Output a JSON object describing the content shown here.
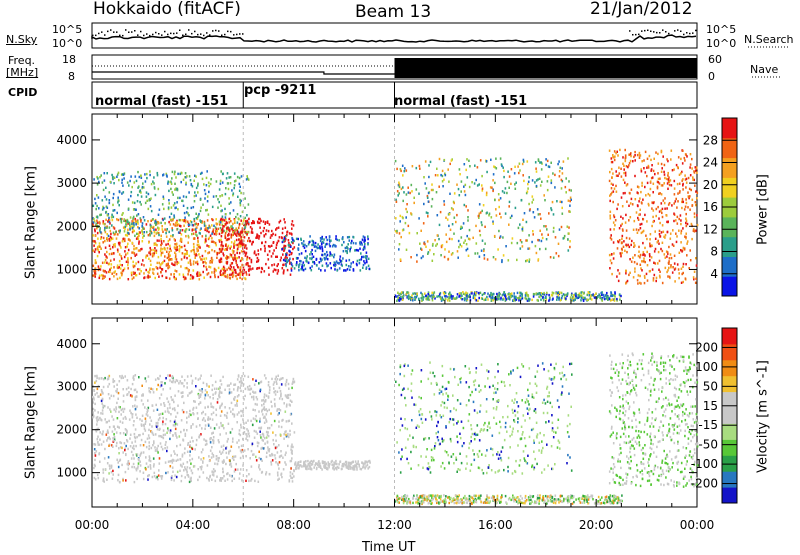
{
  "header": {
    "station": "Hokkaido (fitACF)",
    "beam": "Beam 13",
    "date": "21/Jan/2012"
  },
  "left_labels": {
    "nsky": "N.Sky",
    "freq_line1": "Freq.",
    "freq_line2": "[MHz]",
    "cpid": "CPID"
  },
  "right_labels": {
    "nsearch": "N.Search",
    "nave": "Nave"
  },
  "status_axes": {
    "n_left_top": "10^5",
    "n_left_bottom": "10^0",
    "n_right_top": "10^5",
    "n_right_bottom": "10^0",
    "freq_top": "18",
    "freq_bottom": "8",
    "nave_top": "60",
    "nave_bottom": "0"
  },
  "cpid_modes": [
    {
      "label": "normal (fast) -151",
      "start_h": 0,
      "end_h": 6
    },
    {
      "label": "pcp -9211",
      "start_h": 6,
      "end_h": 12
    },
    {
      "label": "normal (fast) -151",
      "start_h": 12,
      "end_h": 24
    }
  ],
  "chart_data": [
    {
      "type": "heatmap",
      "title": "Power",
      "xlabel": "Time UT",
      "ylabel": "Slant Range [km]",
      "xlim_hours": [
        0,
        24
      ],
      "ylim": [
        200,
        4600
      ],
      "x_ticks": [
        "00:00",
        "04:00",
        "08:00",
        "12:00",
        "16:00",
        "20:00",
        "00:00"
      ],
      "y_ticks": [
        "1000",
        "2000",
        "3000",
        "4000"
      ],
      "colorbar": {
        "label": "Power [dB]",
        "range": [
          0,
          32
        ],
        "ticks": [
          "4",
          "8",
          "12",
          "16",
          "20",
          "24",
          "28"
        ],
        "colors": [
          "#0a14e6",
          "#1e6ec8",
          "#2a9e8a",
          "#5ab45a",
          "#9ccc3c",
          "#f0d020",
          "#f4a020",
          "#f06414",
          "#e61414"
        ]
      }
    },
    {
      "type": "heatmap",
      "title": "Velocity",
      "xlabel": "Time UT",
      "ylabel": "Slant Range [km]",
      "xlim_hours": [
        0,
        24
      ],
      "ylim": [
        200,
        4600
      ],
      "x_ticks": [
        "00:00",
        "04:00",
        "08:00",
        "12:00",
        "16:00",
        "20:00",
        "00:00"
      ],
      "y_ticks": [
        "1000",
        "2000",
        "3000",
        "4000"
      ],
      "colorbar": {
        "label": "Velocity [m s^-1]",
        "range": [
          -250,
          250
        ],
        "ticks": [
          "200",
          "100",
          "50",
          "15",
          "-15",
          "-50",
          "-100",
          "-200"
        ],
        "colors": [
          "#1414c8",
          "#2878c0",
          "#2aa048",
          "#58c838",
          "#a8dc80",
          "#c8c8c8",
          "#c8c8c8",
          "#f0c030",
          "#f08c14",
          "#f05014",
          "#e61414"
        ]
      }
    }
  ]
}
